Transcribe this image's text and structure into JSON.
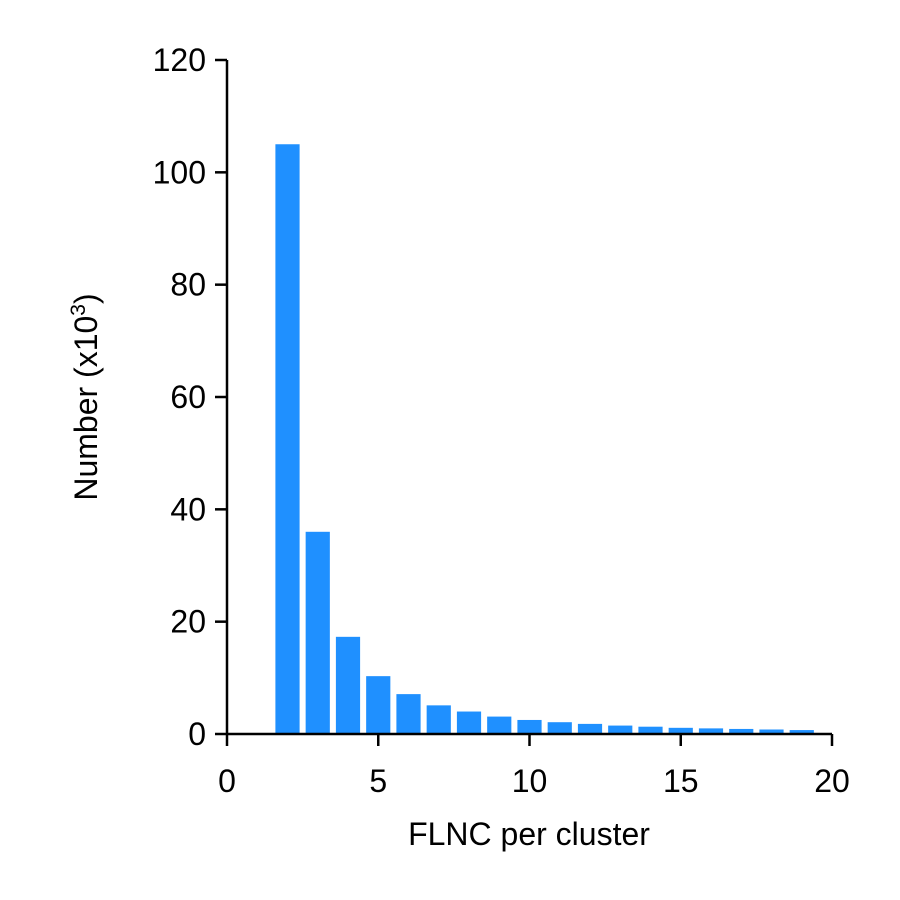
{
  "chart_data": {
    "type": "bar",
    "xlabel": "FLNC per cluster",
    "ylabel_main": "Number (x10",
    "ylabel_sup": "3",
    "ylabel_close": ")",
    "xlim": [
      0,
      20
    ],
    "ylim": [
      0,
      120
    ],
    "xticks": [
      0,
      5,
      10,
      15,
      20
    ],
    "yticks": [
      0,
      20,
      40,
      60,
      80,
      100,
      120
    ],
    "bar_color": "#1f90ff",
    "grid": false,
    "x": [
      2,
      3,
      4,
      5,
      6,
      7,
      8,
      9,
      10,
      11,
      12,
      13,
      14,
      15,
      16,
      17,
      18,
      19
    ],
    "values": [
      105,
      36,
      17.3,
      10.3,
      7.1,
      5.1,
      4.0,
      3.1,
      2.5,
      2.1,
      1.8,
      1.5,
      1.3,
      1.1,
      1.0,
      0.9,
      0.8,
      0.7
    ]
  }
}
